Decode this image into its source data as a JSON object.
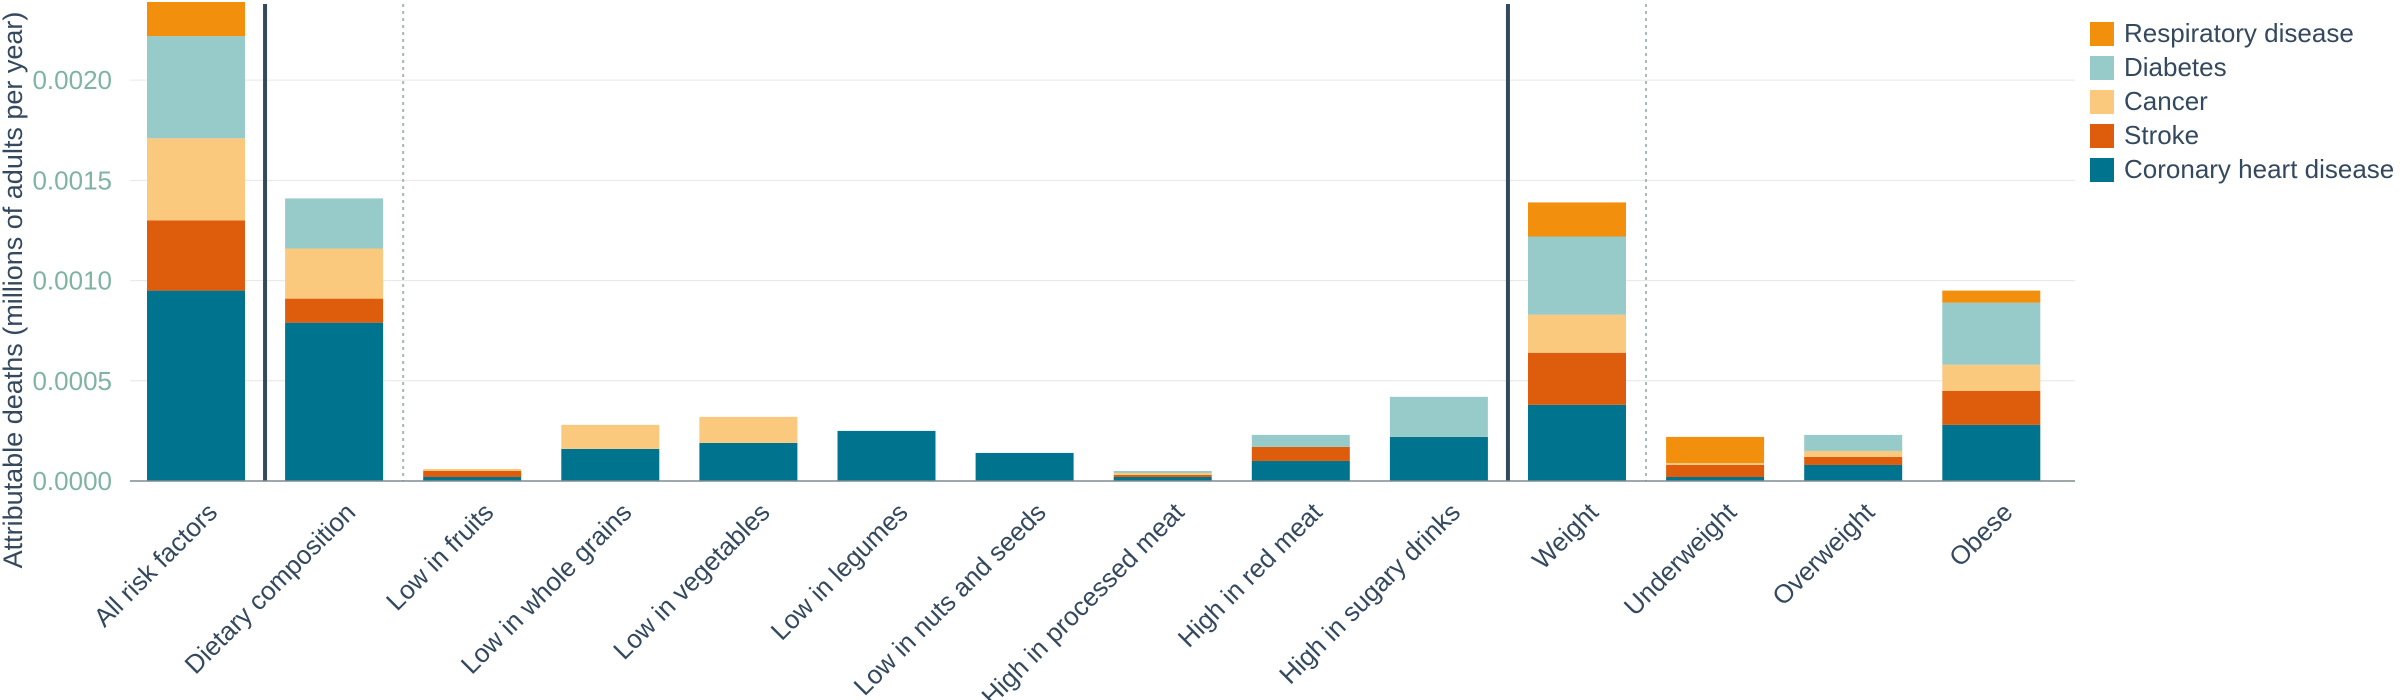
{
  "chart_data": {
    "type": "bar",
    "stacked": true,
    "ylabel": "Attributable deaths (millions of adults per year)",
    "xlabel": "",
    "ylim": [
      0,
      0.0024
    ],
    "yticks": [
      "0.0000",
      "0.0005",
      "0.0010",
      "0.0015",
      "0.0020"
    ],
    "ytick_values": [
      0,
      0.0005,
      0.001,
      0.0015,
      0.002
    ],
    "grid": true,
    "legend_position": "right",
    "categories": [
      "All risk factors",
      "Dietary composition",
      "Low in fruits",
      "Low in whole grains",
      "Low in vegetables",
      "Low in legumes",
      "Low in nuts and seeds",
      "High in processed meat",
      "High in red meat",
      "High in sugary drinks",
      "Weight",
      "Underweight",
      "Overweight",
      "Obese"
    ],
    "group_separators": [
      {
        "after_index": 0,
        "style": "solid"
      },
      {
        "after_index": 1,
        "style": "dotted"
      },
      {
        "after_index": 9,
        "style": "solid"
      },
      {
        "after_index": 10,
        "style": "dotted"
      }
    ],
    "series": [
      {
        "name": "Coronary heart disease",
        "color": "#00738f",
        "values": [
          0.00095,
          0.00079,
          2e-05,
          0.00016,
          0.00019,
          0.00025,
          0.00014,
          2e-05,
          0.0001,
          0.00022,
          0.00038,
          2e-05,
          8e-05,
          0.00028
        ]
      },
      {
        "name": "Stroke",
        "color": "#de5d0c",
        "values": [
          0.00035,
          0.00012,
          3e-05,
          0.0,
          0.0,
          0.0,
          0.0,
          1e-05,
          7e-05,
          0.0,
          0.00026,
          6e-05,
          4e-05,
          0.00017
        ]
      },
      {
        "name": "Cancer",
        "color": "#fbc97e",
        "values": [
          0.00041,
          0.00025,
          1e-05,
          0.00012,
          0.00013,
          0.0,
          0.0,
          1e-05,
          0.0,
          0.0,
          0.00019,
          1e-05,
          3e-05,
          0.00013
        ]
      },
      {
        "name": "Diabetes",
        "color": "#96cbca",
        "values": [
          0.00051,
          0.00025,
          0.0,
          0.0,
          0.0,
          0.0,
          0.0,
          1e-05,
          6e-05,
          0.0002,
          0.00039,
          0.0,
          8e-05,
          0.00031
        ]
      },
      {
        "name": "Respiratory disease",
        "color": "#f28f0c",
        "values": [
          0.00017,
          0.0,
          0.0,
          0.0,
          0.0,
          0.0,
          0.0,
          0.0,
          0.0,
          0.0,
          0.00017,
          0.00013,
          0.0,
          6e-05
        ]
      }
    ]
  },
  "colors": {
    "axis": "#7f8c8d",
    "grid": "#e6e6e6",
    "separator": "#34495e",
    "tick_text": "#7fb4a0",
    "label_text": "#34495e"
  }
}
